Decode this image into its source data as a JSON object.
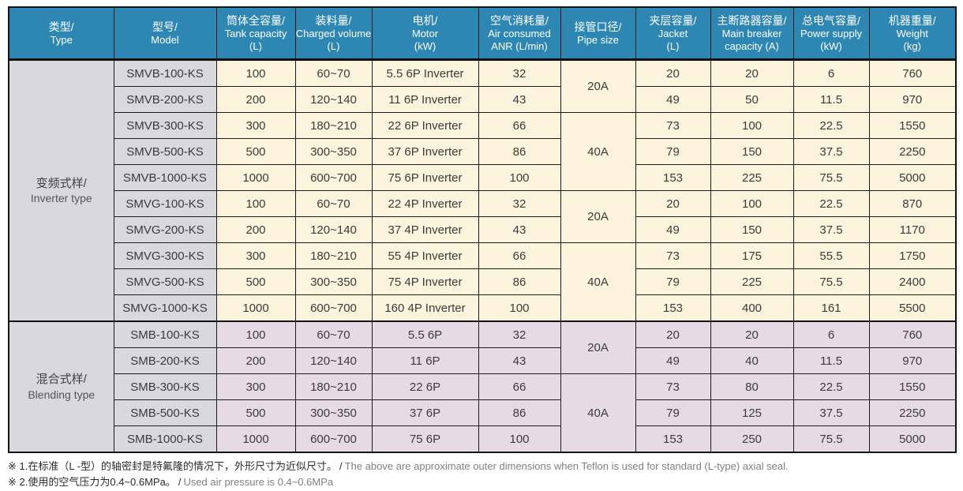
{
  "table": {
    "columns": [
      {
        "zh": "类型/",
        "en": "Type",
        "unit": ""
      },
      {
        "zh": "型号/",
        "en": "Model",
        "unit": ""
      },
      {
        "zh": "筒体全容量/",
        "en": "Tank capacity",
        "unit": "(L)"
      },
      {
        "zh": "装料量/",
        "en": "Charged volume",
        "unit": "(L)"
      },
      {
        "zh": "电机/",
        "en": "Motor",
        "unit": "(kW)"
      },
      {
        "zh": "空气消耗量/",
        "en": "Air consumed",
        "unit": "ANR (L/min)"
      },
      {
        "zh": "接管口径/",
        "en": "Pipe size",
        "unit": ""
      },
      {
        "zh": "夹层容量/",
        "en": "Jacket",
        "unit": "(L)"
      },
      {
        "zh": "主断路器容量/",
        "en": "Main breaker",
        "unit": "capacity (A)"
      },
      {
        "zh": "总电气容量/",
        "en": "Power supply",
        "unit": "(kW)"
      },
      {
        "zh": "机器重量/",
        "en": "Weight",
        "unit": "(kg)"
      }
    ],
    "groups": [
      {
        "zh": "变频式样/",
        "en": "Inverter type",
        "start": 0,
        "span": 10
      },
      {
        "zh": "混合式样/",
        "en": "Blending type",
        "start": 10,
        "span": 5
      }
    ],
    "pipe_merges": [
      {
        "label": "20A",
        "span": 2
      },
      {
        "label": "40A",
        "span": 3
      },
      {
        "label": "20A",
        "span": 2
      },
      {
        "label": "40A",
        "span": 3
      },
      {
        "label": "20A",
        "span": 2
      },
      {
        "label": "40A",
        "span": 3
      }
    ],
    "rows": [
      {
        "group": 0,
        "model": "SMVB-100-KS",
        "tank": "100",
        "charged": "60~70",
        "motor": "5.5 6P Inverter",
        "air": "32",
        "jacket": "20",
        "breaker": "20",
        "power": "6",
        "weight": "760"
      },
      {
        "group": 0,
        "model": "SMVB-200-KS",
        "tank": "200",
        "charged": "120~140",
        "motor": "11 6P Inverter",
        "air": "43",
        "jacket": "49",
        "breaker": "50",
        "power": "11.5",
        "weight": "970"
      },
      {
        "group": 0,
        "model": "SMVB-300-KS",
        "tank": "300",
        "charged": "180~210",
        "motor": "22 6P Inverter",
        "air": "66",
        "jacket": "73",
        "breaker": "100",
        "power": "22.5",
        "weight": "1550"
      },
      {
        "group": 0,
        "model": "SMVB-500-KS",
        "tank": "500",
        "charged": "300~350",
        "motor": "37 6P Inverter",
        "air": "86",
        "jacket": "79",
        "breaker": "150",
        "power": "37.5",
        "weight": "2250"
      },
      {
        "group": 0,
        "model": "SMVB-1000-KS",
        "tank": "1000",
        "charged": "600~700",
        "motor": "75 6P Inverter",
        "air": "100",
        "jacket": "153",
        "breaker": "225",
        "power": "75.5",
        "weight": "5000"
      },
      {
        "group": 0,
        "model": "SMVG-100-KS",
        "tank": "100",
        "charged": "60~70",
        "motor": "22 4P Inverter",
        "air": "32",
        "jacket": "20",
        "breaker": "100",
        "power": "22.5",
        "weight": "870"
      },
      {
        "group": 0,
        "model": "SMVG-200-KS",
        "tank": "200",
        "charged": "120~140",
        "motor": "37 4P Inverter",
        "air": "43",
        "jacket": "49",
        "breaker": "150",
        "power": "37.5",
        "weight": "1170"
      },
      {
        "group": 0,
        "model": "SMVG-300-KS",
        "tank": "300",
        "charged": "180~210",
        "motor": "55 4P Inverter",
        "air": "66",
        "jacket": "73",
        "breaker": "175",
        "power": "55.5",
        "weight": "1750"
      },
      {
        "group": 0,
        "model": "SMVG-500-KS",
        "tank": "500",
        "charged": "300~350",
        "motor": "75 4P Inverter",
        "air": "86",
        "jacket": "79",
        "breaker": "225",
        "power": "75.5",
        "weight": "2400"
      },
      {
        "group": 0,
        "model": "SMVG-1000-KS",
        "tank": "1000",
        "charged": "600~700",
        "motor": "160 4P Inverter",
        "air": "100",
        "jacket": "153",
        "breaker": "400",
        "power": "161",
        "weight": "5500"
      },
      {
        "group": 1,
        "model": "SMB-100-KS",
        "tank": "100",
        "charged": "60~70",
        "motor": "5.5 6P",
        "air": "32",
        "jacket": "20",
        "breaker": "20",
        "power": "6",
        "weight": "760"
      },
      {
        "group": 1,
        "model": "SMB-200-KS",
        "tank": "200",
        "charged": "120~140",
        "motor": "11 6P",
        "air": "43",
        "jacket": "49",
        "breaker": "40",
        "power": "11.5",
        "weight": "970"
      },
      {
        "group": 1,
        "model": "SMB-300-KS",
        "tank": "300",
        "charged": "180~210",
        "motor": "22 6P",
        "air": "66",
        "jacket": "73",
        "breaker": "80",
        "power": "22.5",
        "weight": "1550"
      },
      {
        "group": 1,
        "model": "SMB-500-KS",
        "tank": "500",
        "charged": "300~350",
        "motor": "37 6P",
        "air": "86",
        "jacket": "79",
        "breaker": "125",
        "power": "37.5",
        "weight": "2250"
      },
      {
        "group": 1,
        "model": "SMB-1000-KS",
        "tank": "1000",
        "charged": "600~700",
        "motor": "75 6P",
        "air": "100",
        "jacket": "153",
        "breaker": "250",
        "power": "75.5",
        "weight": "5000"
      }
    ]
  },
  "colors": {
    "header_bg": "#2D87B2",
    "inverter_row_bg": "#FBF3DB",
    "blending_row_bg": "#E7DBE3",
    "label_col_bg": "#D9D9DD",
    "border": "#1c1c1c"
  },
  "notes": [
    {
      "zh": "※ 1.在标准（L -型）的轴密封是特氟隆的情况下，外形尺寸为近似尺寸。",
      "sep": "/",
      "en": "The above are approximate outer dimensions when Teflon is used for standard (L-type) axial seal."
    },
    {
      "zh": "※ 2.使用的空气压力为0.4~0.6MPa。",
      "sep": "/",
      "en": "Used air pressure is 0.4~0.6MPa"
    }
  ]
}
